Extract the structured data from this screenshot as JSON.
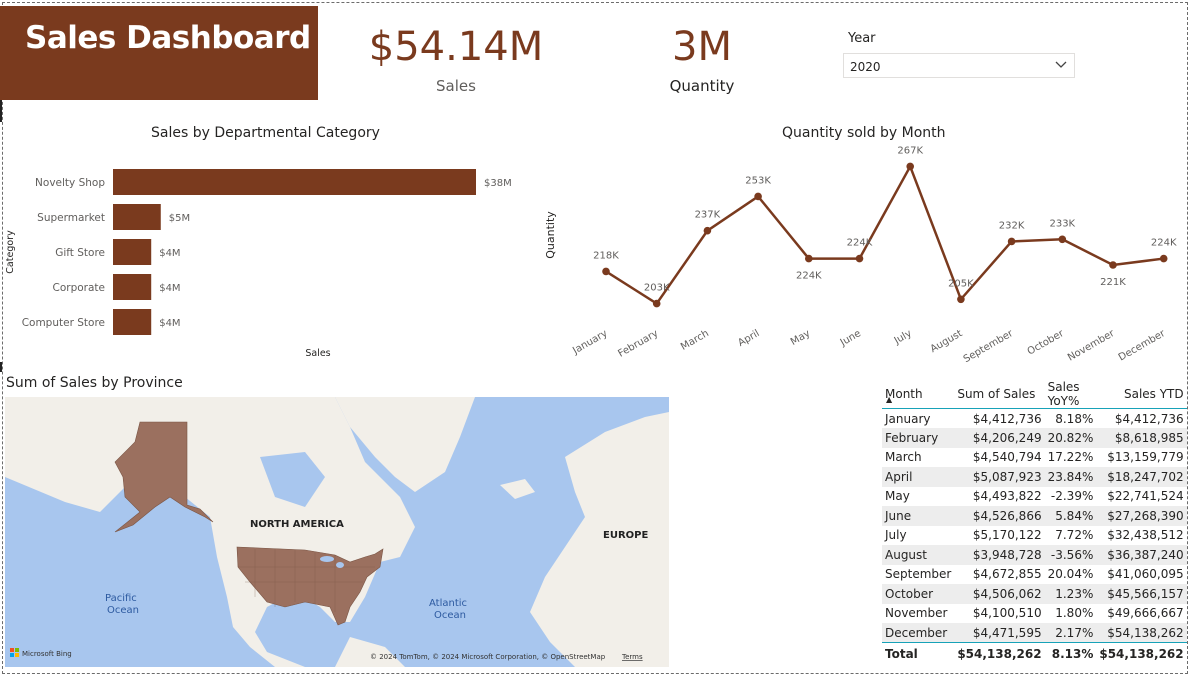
{
  "dashboard": {
    "title": "Sales Dashboard"
  },
  "kpis": {
    "sales_value": "$54.14M",
    "sales_label": "Sales",
    "quantity_value": "3M",
    "quantity_label": "Quantity"
  },
  "filter": {
    "label": "Year",
    "selected": "2020"
  },
  "chart_data": [
    {
      "type": "bar",
      "title": "Sales by Departmental Category",
      "xlabel": "Sales",
      "ylabel": "Category",
      "categories": [
        "Novelty Shop",
        "Supermarket",
        "Gift Store",
        "Corporate",
        "Computer Store"
      ],
      "values": [
        38,
        5,
        4,
        4,
        4
      ],
      "data_labels": [
        "$38M",
        "$5M",
        "$4M",
        "$4M",
        "$4M"
      ],
      "color": "#7a3a1e"
    },
    {
      "type": "line",
      "title": "Quantity sold by Month",
      "ylabel": "Quantity",
      "categories": [
        "January",
        "February",
        "March",
        "April",
        "May",
        "June",
        "July",
        "August",
        "September",
        "October",
        "November",
        "December"
      ],
      "values": [
        218,
        203,
        237,
        253,
        224,
        224,
        267,
        205,
        232,
        233,
        221,
        224
      ],
      "data_labels": [
        "218K",
        "203K",
        "237K",
        "253K",
        "224K",
        "224K",
        "267K",
        "205K",
        "232K",
        "233K",
        "221K",
        "224K"
      ],
      "color": "#7a3a1e"
    }
  ],
  "map": {
    "title": "Sum of Sales by Province",
    "labels": {
      "north_america": "NORTH AMERICA",
      "europe": "EUROPE",
      "pacific": "Pacific Ocean",
      "atlantic": "Atlantic Ocean"
    },
    "attribution": "© 2024 TomTom, © 2024 Microsoft Corporation, © OpenStreetMap",
    "terms": "Terms",
    "bing": "Microsoft Bing",
    "region_color": "#9b705f"
  },
  "table": {
    "headers": [
      "Month",
      "Sum of Sales",
      "Sales YoY%",
      "Sales YTD"
    ],
    "rows": [
      [
        "January",
        "$4,412,736",
        "8.18%",
        "$4,412,736"
      ],
      [
        "February",
        "$4,206,249",
        "20.82%",
        "$8,618,985"
      ],
      [
        "March",
        "$4,540,794",
        "17.22%",
        "$13,159,779"
      ],
      [
        "April",
        "$5,087,923",
        "23.84%",
        "$18,247,702"
      ],
      [
        "May",
        "$4,493,822",
        "-2.39%",
        "$22,741,524"
      ],
      [
        "June",
        "$4,526,866",
        "5.84%",
        "$27,268,390"
      ],
      [
        "July",
        "$5,170,122",
        "7.72%",
        "$32,438,512"
      ],
      [
        "August",
        "$3,948,728",
        "-3.56%",
        "$36,387,240"
      ],
      [
        "September",
        "$4,672,855",
        "20.04%",
        "$41,060,095"
      ],
      [
        "October",
        "$4,506,062",
        "1.23%",
        "$45,566,157"
      ],
      [
        "November",
        "$4,100,510",
        "1.80%",
        "$49,666,667"
      ],
      [
        "December",
        "$4,471,595",
        "2.17%",
        "$54,138,262"
      ]
    ],
    "total": [
      "Total",
      "$54,138,262",
      "8.13%",
      "$54,138,262"
    ]
  }
}
